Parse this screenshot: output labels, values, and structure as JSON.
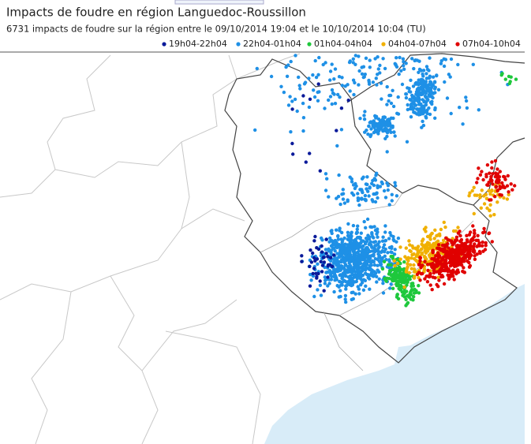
{
  "header": {
    "title": "Impacts de foudre en région Languedoc-Roussillon",
    "subtitle": "6731 impacts de foudre sur la région entre le 09/10/2014 19:04 et le 10/10/2014 10:04 (TU)"
  },
  "legend": {
    "items": [
      {
        "label": "19h04-22h04",
        "color": "#0a1a9a"
      },
      {
        "label": "22h04-01h04",
        "color": "#1e90e6"
      },
      {
        "label": "01h04-04h04",
        "color": "#1ec83c"
      },
      {
        "label": "04h04-07h04",
        "color": "#f0b000"
      },
      {
        "label": "07h04-10h04",
        "color": "#e00000"
      }
    ]
  }
}
